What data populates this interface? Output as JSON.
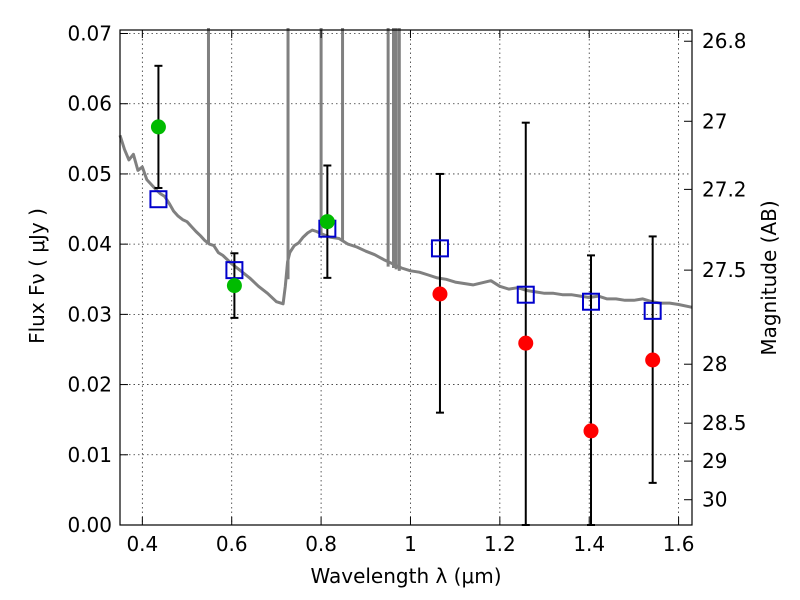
{
  "chart_data": {
    "type": "scatter",
    "xlabel": "Wavelength  λ (μm)",
    "ylabel": "Flux  Fν  ( μJy )",
    "y2label": "Magnitude (AB)",
    "xlim": [
      0.35,
      1.63
    ],
    "ylim": [
      0.0,
      0.0705
    ],
    "grid": true,
    "x_ticks": [
      0.4,
      0.6,
      0.8,
      1.0,
      1.2,
      1.4,
      1.6
    ],
    "x_tick_labels": [
      "0.4",
      "0.6",
      "0.8",
      "1",
      "1.2",
      "1.4",
      "1.6"
    ],
    "y_ticks": [
      0.0,
      0.01,
      0.02,
      0.03,
      0.04,
      0.05,
      0.06,
      0.07
    ],
    "y_tick_labels": [
      "0.00",
      "0.01",
      "0.02",
      "0.03",
      "0.04",
      "0.05",
      "0.06",
      "0.07"
    ],
    "y2_ticks": [
      {
        "label": "26.8",
        "flux": 0.0689
      },
      {
        "label": "27",
        "flux": 0.0575
      },
      {
        "label": "27.2",
        "flux": 0.0478
      },
      {
        "label": "27.5",
        "flux": 0.0363
      },
      {
        "label": "28",
        "flux": 0.0229
      },
      {
        "label": "28.5",
        "flux": 0.0145
      },
      {
        "label": "29",
        "flux": 0.0091
      },
      {
        "label": "30",
        "flux": 0.0036
      }
    ],
    "model_spectrum": {
      "color": "#808080",
      "x": [
        0.35,
        0.36,
        0.37,
        0.38,
        0.39,
        0.4,
        0.41,
        0.42,
        0.43,
        0.44,
        0.45,
        0.46,
        0.47,
        0.48,
        0.49,
        0.5,
        0.51,
        0.52,
        0.53,
        0.54,
        0.55,
        0.56,
        0.57,
        0.58,
        0.59,
        0.6,
        0.62,
        0.64,
        0.66,
        0.68,
        0.7,
        0.715,
        0.72,
        0.725,
        0.73,
        0.74,
        0.75,
        0.76,
        0.77,
        0.78,
        0.79,
        0.8,
        0.82,
        0.84,
        0.86,
        0.88,
        0.9,
        0.92,
        0.94,
        0.96,
        0.98,
        1.0,
        1.02,
        1.04,
        1.06,
        1.08,
        1.1,
        1.12,
        1.14,
        1.16,
        1.18,
        1.2,
        1.22,
        1.24,
        1.26,
        1.28,
        1.3,
        1.32,
        1.34,
        1.36,
        1.38,
        1.4,
        1.42,
        1.44,
        1.46,
        1.48,
        1.5,
        1.52,
        1.54,
        1.56,
        1.58,
        1.6,
        1.63
      ],
      "y": [
        0.0555,
        0.0535,
        0.052,
        0.0528,
        0.0505,
        0.051,
        0.0492,
        0.0485,
        0.0478,
        0.0472,
        0.0468,
        0.0458,
        0.0447,
        0.044,
        0.0435,
        0.0432,
        0.0425,
        0.0418,
        0.0412,
        0.0405,
        0.04,
        0.0398,
        0.0388,
        0.0384,
        0.0378,
        0.0372,
        0.0362,
        0.0352,
        0.034,
        0.033,
        0.0318,
        0.0315,
        0.034,
        0.0375,
        0.0388,
        0.0398,
        0.0402,
        0.041,
        0.0416,
        0.042,
        0.0418,
        0.0415,
        0.041,
        0.0408,
        0.04,
        0.0396,
        0.039,
        0.0385,
        0.0378,
        0.0372,
        0.0366,
        0.0362,
        0.036,
        0.0356,
        0.0352,
        0.035,
        0.0346,
        0.0344,
        0.0342,
        0.0345,
        0.0348,
        0.034,
        0.0336,
        0.0338,
        0.0334,
        0.0332,
        0.033,
        0.033,
        0.0328,
        0.0328,
        0.0326,
        0.0324,
        0.0326,
        0.0322,
        0.0322,
        0.032,
        0.032,
        0.0322,
        0.0318,
        0.0316,
        0.0316,
        0.0314,
        0.031
      ],
      "spikes": [
        {
          "x": 0.548,
          "y_top": 0.0705,
          "y_base": 0.0402
        },
        {
          "x": 0.726,
          "y_top": 0.0705,
          "y_base": 0.035
        },
        {
          "x": 0.8,
          "y_top": 0.0705,
          "y_base": 0.0415
        },
        {
          "x": 0.848,
          "y_top": 0.0705,
          "y_base": 0.0405
        },
        {
          "x": 0.95,
          "y_top": 0.0705,
          "y_base": 0.0368
        },
        {
          "x": 0.962,
          "y_top": 0.0705,
          "y_base": 0.0366
        },
        {
          "x": 0.968,
          "y_top": 0.0705,
          "y_base": 0.0364
        },
        {
          "x": 0.975,
          "y_top": 0.0705,
          "y_base": 0.0362
        }
      ]
    },
    "model_points": {
      "marker": "open-square",
      "color": "#0000cc",
      "x": [
        0.436,
        0.606,
        0.814,
        1.066,
        1.258,
        1.404,
        1.542
      ],
      "y": [
        0.0464,
        0.0363,
        0.0422,
        0.0394,
        0.0328,
        0.0318,
        0.0305
      ]
    },
    "detections": {
      "marker": "filled-circle",
      "color": "#00bb00",
      "x": [
        0.436,
        0.606,
        0.814
      ],
      "y": [
        0.0567,
        0.0341,
        0.0432
      ],
      "err_low": [
        0.0087,
        0.0046,
        0.008
      ],
      "err_high": [
        0.0087,
        0.0046,
        0.008
      ]
    },
    "non_detections": {
      "marker": "filled-circle",
      "color": "#ff0000",
      "x": [
        1.066,
        1.258,
        1.404,
        1.542
      ],
      "y": [
        0.0329,
        0.0259,
        0.0134,
        0.0235
      ],
      "err_low": [
        0.0169,
        0.0259,
        0.0134,
        0.0175
      ],
      "err_high": [
        0.0171,
        0.0314,
        0.025,
        0.0176
      ]
    }
  }
}
